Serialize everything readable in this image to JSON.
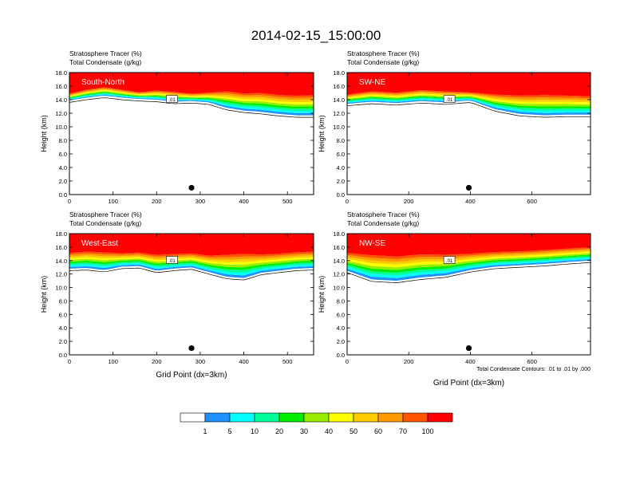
{
  "chart_data": {
    "type": "heatmap",
    "title": "2014-02-15_15:00:00",
    "variables": {
      "fill": "Stratosphere Tracer   (%)",
      "contour": "Total Condensate   (g/kg)"
    },
    "ylabel": "Height (km)",
    "xlabel": "Grid Point (dx=3km)",
    "ylim": [
      0,
      18
    ],
    "yticks": [
      "0.0",
      "2.0",
      "4.0",
      "6.0",
      "8.0",
      "10.0",
      "12.0",
      "14.0",
      "16.0",
      "18.0"
    ],
    "contour_info": "Total Condensate Contours: .01 to .01 by .000",
    "contour_label": ".01",
    "panels": [
      {
        "name": "South-North",
        "xlim": [
          0,
          560
        ],
        "xticks": [
          "0",
          "100",
          "200",
          "300",
          "400",
          "500"
        ],
        "xtick_values": [
          0,
          100,
          200,
          300,
          400,
          500
        ],
        "marker_x": 280,
        "profile": {
          "x": [
            0,
            40,
            80,
            120,
            160,
            200,
            240,
            280,
            320,
            360,
            400,
            440,
            480,
            520,
            560
          ],
          "top_km": [
            15.0,
            15.6,
            16.0,
            15.6,
            15.2,
            15.5,
            15.3,
            15.0,
            15.2,
            15.5,
            15.2,
            15.3,
            15.0,
            14.9,
            15.0
          ],
          "base_km": [
            13.9,
            14.3,
            14.6,
            14.3,
            14.1,
            14.0,
            13.7,
            13.8,
            13.6,
            12.8,
            12.4,
            12.2,
            11.9,
            11.7,
            11.7
          ]
        }
      },
      {
        "name": "SW-NE",
        "xlim": [
          0,
          790
        ],
        "xticks": [
          "0",
          "200",
          "400",
          "600"
        ],
        "xtick_values": [
          0,
          200,
          400,
          600
        ],
        "marker_x": 395,
        "profile": {
          "x": [
            0,
            80,
            160,
            240,
            320,
            400,
            480,
            560,
            640,
            720,
            790
          ],
          "top_km": [
            14.9,
            15.4,
            15.2,
            15.6,
            15.4,
            15.2,
            15.0,
            14.9,
            15.0,
            14.9,
            14.8
          ],
          "base_km": [
            13.4,
            13.7,
            13.5,
            13.8,
            13.6,
            13.9,
            12.6,
            11.9,
            11.7,
            11.8,
            11.8
          ]
        }
      },
      {
        "name": "West-East",
        "xlim": [
          0,
          560
        ],
        "xticks": [
          "0",
          "100",
          "200",
          "300",
          "400",
          "500"
        ],
        "xtick_values": [
          0,
          100,
          200,
          300,
          400,
          500
        ],
        "marker_x": 280,
        "profile": {
          "x": [
            0,
            40,
            80,
            120,
            160,
            200,
            240,
            280,
            320,
            360,
            400,
            440,
            480,
            520,
            560
          ],
          "top_km": [
            15.4,
            15.6,
            15.5,
            15.3,
            15.4,
            15.1,
            15.2,
            15.3,
            15.0,
            15.2,
            15.4,
            15.2,
            15.3,
            15.5,
            15.6
          ],
          "base_km": [
            12.8,
            12.9,
            12.6,
            13.1,
            13.2,
            12.5,
            12.8,
            13.0,
            12.3,
            11.6,
            11.4,
            12.2,
            12.5,
            12.8,
            12.9
          ]
        }
      },
      {
        "name": "NW-SE",
        "xlim": [
          0,
          790
        ],
        "xticks": [
          "0",
          "200",
          "400",
          "600"
        ],
        "xtick_values": [
          0,
          200,
          400,
          600
        ],
        "marker_x": 395,
        "profile": {
          "x": [
            0,
            80,
            160,
            240,
            320,
            400,
            480,
            560,
            640,
            720,
            790
          ],
          "top_km": [
            15.4,
            15.2,
            15.0,
            15.3,
            15.2,
            15.3,
            15.5,
            15.6,
            15.8,
            16.0,
            16.2
          ],
          "base_km": [
            12.5,
            11.2,
            11.0,
            11.5,
            11.8,
            12.6,
            13.1,
            13.3,
            13.5,
            13.8,
            14.0
          ]
        }
      }
    ],
    "legend": {
      "placement": "bottom-center",
      "labels": [
        "1",
        "5",
        "10",
        "20",
        "30",
        "40",
        "50",
        "60",
        "70",
        "100"
      ],
      "colors": [
        "#ffffff",
        "#1e90ff",
        "#00ffff",
        "#00ff99",
        "#00ee00",
        "#99ee00",
        "#ffff00",
        "#ffcc00",
        "#ff9900",
        "#ff5500",
        "#ff0000"
      ]
    }
  }
}
